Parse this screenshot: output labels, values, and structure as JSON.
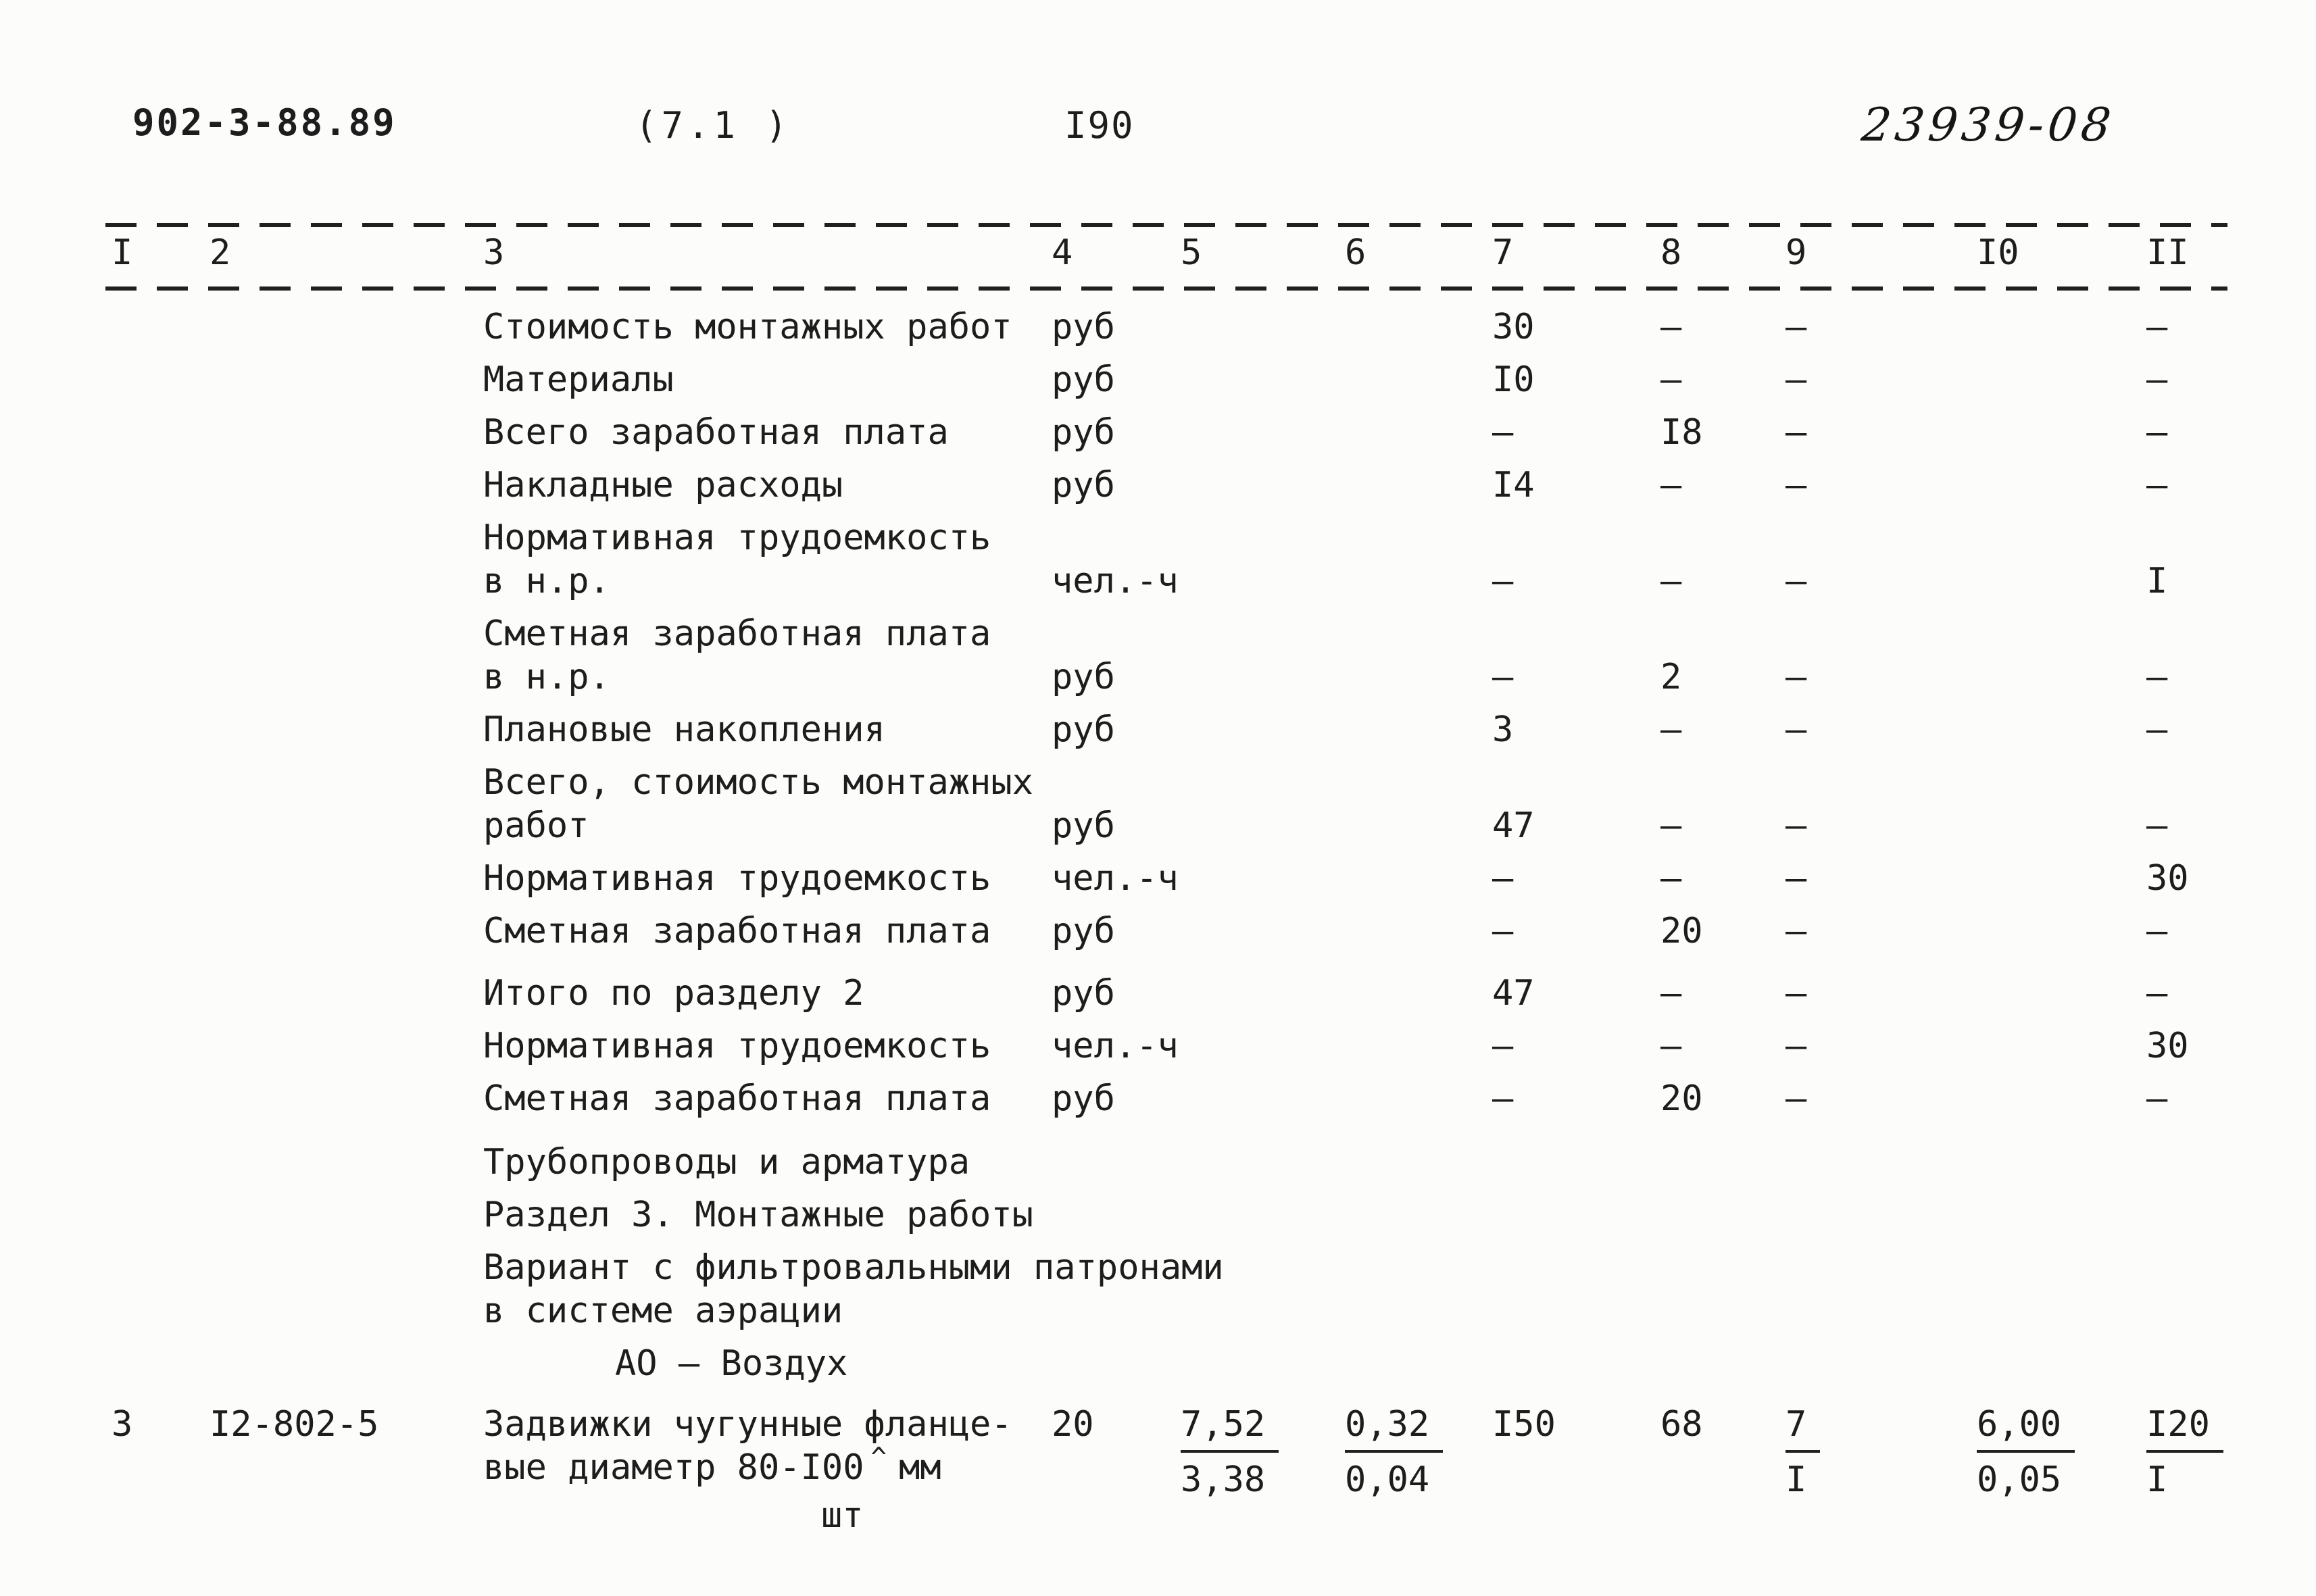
{
  "header": {
    "doc_number": "902-3-88.89",
    "section_ref": "(7.1 )",
    "page_number": "I90",
    "handwritten_code": "23939-08"
  },
  "colors": {
    "paper": "#fcfcfa",
    "ink": "#1d1d1d"
  },
  "table": {
    "column_numbers": [
      "I",
      "2",
      "3",
      "4",
      "5",
      "6",
      "7",
      "8",
      "9",
      "I0",
      "II"
    ],
    "rows": [
      {
        "label": "Стоимость монтажных работ",
        "unit": "руб",
        "c7": "30",
        "c8": "–",
        "c9": "–",
        "c11": "–"
      },
      {
        "label": "Материалы",
        "unit": "руб",
        "c7": "I0",
        "c8": "–",
        "c9": "–",
        "c11": "–"
      },
      {
        "label": "Всего заработная плата",
        "unit": "руб",
        "c7": "–",
        "c8": "I8",
        "c9": "–",
        "c11": "–"
      },
      {
        "label": "Накладные расходы",
        "unit": "руб",
        "c7": "I4",
        "c8": "–",
        "c9": "–",
        "c11": "–"
      },
      {
        "label": "Нормативная трудоемкость",
        "label2": "в н.р.",
        "unit": "чел.-ч",
        "c7": "–",
        "c8": "–",
        "c9": "–",
        "c11": "I"
      },
      {
        "label": "Сметная заработная плата",
        "label2": "в н.р.",
        "unit": "руб",
        "c7": "–",
        "c8": "2",
        "c9": "–",
        "c11": "–"
      },
      {
        "label": "Плановые накопления",
        "unit": "руб",
        "c7": "3",
        "c8": "–",
        "c9": "–",
        "c11": "–"
      },
      {
        "label": "Всего, стоимость монтажных",
        "label2": "работ",
        "unit": "руб",
        "c7": "47",
        "c8": "–",
        "c9": "–",
        "c11": "–"
      },
      {
        "label": "Нормативная трудоемкость",
        "unit": "чел.-ч",
        "c7": "–",
        "c8": "–",
        "c9": "–",
        "c11": "30"
      },
      {
        "label": "Сметная заработная плата",
        "unit": "руб",
        "c7": "–",
        "c8": "20",
        "c9": "–",
        "c11": "–"
      },
      {
        "label": "Итого по разделу 2",
        "unit": "руб",
        "c7": "47",
        "c8": "–",
        "c9": "–",
        "c11": "–"
      },
      {
        "label": "Нормативная трудоемкость",
        "unit": "чел.-ч",
        "c7": "–",
        "c8": "–",
        "c9": "–",
        "c11": "30"
      },
      {
        "label": "Сметная заработная плата",
        "unit": "руб",
        "c7": "–",
        "c8": "20",
        "c9": "–",
        "c11": "–"
      }
    ]
  },
  "sections": {
    "pipes_title": "Трубопроводы и арматура",
    "razdel_title": "Раздел 3. Монтажные работы",
    "variant_line1": "Вариант с фильтровальными патронами",
    "variant_line2": "в системе аэрации",
    "ao_line": "АО – Воздух"
  },
  "item": {
    "c1": "3",
    "c2": "I2-802-5",
    "label_line1": "Задвижки чугунные фланце-",
    "label_line2a": "вые диаметр 80-I00",
    "insert_mark": "^",
    "label_line2b": "мм",
    "unit": "шт",
    "c4": "20",
    "c5_top": "7,52",
    "c5_bottom": "3,38",
    "c6_top": "0,32",
    "c6_bottom": "0,04",
    "c7": "I50",
    "c8": "68",
    "c9_top": "7",
    "c9_bottom": "I",
    "c10_top": "6,00",
    "c10_bottom": "0,05",
    "c11_top": "I20",
    "c11_bottom": "I"
  }
}
